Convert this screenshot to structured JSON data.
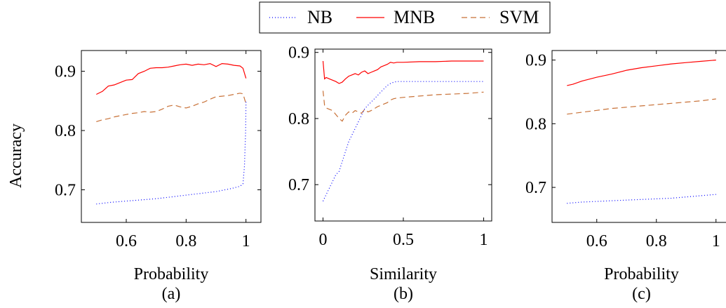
{
  "legend": {
    "entries": [
      {
        "label": "NB",
        "color": "#0000ff",
        "dash": "dotted"
      },
      {
        "label": "MNB",
        "color": "#ff0000",
        "dash": "solid"
      },
      {
        "label": "SVM",
        "color": "#c87137",
        "dash": "dashed"
      }
    ]
  },
  "ylabel": "Accuracy",
  "chart_data": [
    {
      "type": "line",
      "xlabel": "Probability",
      "caption": "(a)",
      "xlim": [
        0.45,
        1.05
      ],
      "ylim": [
        0.645,
        0.935
      ],
      "xticks": [
        0.6,
        0.8,
        1
      ],
      "xtick_labels": [
        "0.6",
        "0.8",
        "1"
      ],
      "yticks": [
        0.7,
        0.8,
        0.9
      ],
      "ytick_labels": [
        "0.7",
        "0.8",
        "0.9"
      ],
      "series": [
        {
          "name": "MNB",
          "x": [
            0.5,
            0.52,
            0.54,
            0.56,
            0.58,
            0.6,
            0.62,
            0.64,
            0.66,
            0.68,
            0.7,
            0.72,
            0.74,
            0.76,
            0.78,
            0.8,
            0.82,
            0.84,
            0.86,
            0.88,
            0.9,
            0.92,
            0.94,
            0.96,
            0.98,
            0.99,
            1.0
          ],
          "y": [
            0.861,
            0.866,
            0.875,
            0.877,
            0.881,
            0.885,
            0.886,
            0.896,
            0.9,
            0.905,
            0.906,
            0.906,
            0.907,
            0.909,
            0.911,
            0.912,
            0.91,
            0.912,
            0.911,
            0.913,
            0.908,
            0.913,
            0.912,
            0.91,
            0.909,
            0.905,
            0.888
          ]
        },
        {
          "name": "SVM",
          "x": [
            0.5,
            0.52,
            0.54,
            0.56,
            0.58,
            0.6,
            0.62,
            0.64,
            0.66,
            0.68,
            0.7,
            0.72,
            0.74,
            0.76,
            0.78,
            0.8,
            0.82,
            0.84,
            0.86,
            0.88,
            0.9,
            0.92,
            0.94,
            0.96,
            0.98,
            0.99,
            1.0
          ],
          "y": [
            0.815,
            0.818,
            0.82,
            0.823,
            0.825,
            0.827,
            0.829,
            0.83,
            0.832,
            0.831,
            0.832,
            0.836,
            0.841,
            0.843,
            0.84,
            0.838,
            0.841,
            0.845,
            0.848,
            0.853,
            0.857,
            0.858,
            0.859,
            0.861,
            0.863,
            0.862,
            0.845
          ]
        },
        {
          "name": "NB",
          "x": [
            0.5,
            0.55,
            0.6,
            0.65,
            0.7,
            0.75,
            0.8,
            0.85,
            0.9,
            0.95,
            0.98,
            0.99,
            0.995,
            0.999,
            1.0
          ],
          "y": [
            0.676,
            0.679,
            0.681,
            0.683,
            0.685,
            0.688,
            0.691,
            0.694,
            0.697,
            0.702,
            0.706,
            0.71,
            0.74,
            0.8,
            0.85
          ]
        }
      ]
    },
    {
      "type": "line",
      "xlabel": "Similarity",
      "caption": "(b)",
      "xlim": [
        -0.05,
        1.05
      ],
      "ylim": [
        0.645,
        0.905
      ],
      "xticks": [
        0,
        0.5,
        1
      ],
      "xtick_labels": [
        "0",
        "0.5",
        "1"
      ],
      "yticks": [
        0.7,
        0.8,
        0.9
      ],
      "ytick_labels": [
        "0.7",
        "0.8",
        "0.9"
      ],
      "series": [
        {
          "name": "MNB",
          "x": [
            0,
            0.01,
            0.02,
            0.04,
            0.06,
            0.08,
            0.1,
            0.12,
            0.14,
            0.16,
            0.18,
            0.2,
            0.22,
            0.24,
            0.26,
            0.28,
            0.3,
            0.32,
            0.34,
            0.36,
            0.38,
            0.4,
            0.42,
            0.44,
            0.46,
            0.5,
            0.6,
            0.7,
            0.8,
            0.9,
            1.0
          ],
          "y": [
            0.887,
            0.86,
            0.862,
            0.86,
            0.858,
            0.856,
            0.853,
            0.855,
            0.86,
            0.864,
            0.866,
            0.868,
            0.866,
            0.87,
            0.872,
            0.868,
            0.87,
            0.872,
            0.874,
            0.878,
            0.88,
            0.882,
            0.885,
            0.884,
            0.885,
            0.885,
            0.886,
            0.886,
            0.887,
            0.887,
            0.887
          ]
        },
        {
          "name": "SVM",
          "x": [
            0,
            0.01,
            0.02,
            0.04,
            0.06,
            0.08,
            0.1,
            0.12,
            0.14,
            0.16,
            0.18,
            0.2,
            0.22,
            0.24,
            0.26,
            0.28,
            0.3,
            0.32,
            0.34,
            0.36,
            0.38,
            0.4,
            0.42,
            0.44,
            0.46,
            0.5,
            0.6,
            0.7,
            0.8,
            0.9,
            1.0
          ],
          "y": [
            0.842,
            0.82,
            0.816,
            0.814,
            0.812,
            0.806,
            0.8,
            0.796,
            0.805,
            0.81,
            0.808,
            0.812,
            0.81,
            0.808,
            0.814,
            0.81,
            0.812,
            0.815,
            0.818,
            0.82,
            0.822,
            0.824,
            0.828,
            0.83,
            0.831,
            0.832,
            0.834,
            0.836,
            0.837,
            0.838,
            0.84
          ]
        },
        {
          "name": "NB",
          "x": [
            0,
            0.02,
            0.04,
            0.06,
            0.08,
            0.1,
            0.12,
            0.14,
            0.16,
            0.18,
            0.2,
            0.22,
            0.24,
            0.26,
            0.28,
            0.3,
            0.32,
            0.34,
            0.36,
            0.38,
            0.4,
            0.42,
            0.44,
            0.46,
            0.5,
            0.6,
            0.7,
            0.8,
            0.9,
            1.0
          ],
          "y": [
            0.675,
            0.685,
            0.695,
            0.705,
            0.715,
            0.72,
            0.735,
            0.75,
            0.765,
            0.775,
            0.785,
            0.795,
            0.805,
            0.815,
            0.82,
            0.825,
            0.83,
            0.835,
            0.84,
            0.845,
            0.85,
            0.853,
            0.855,
            0.856,
            0.856,
            0.856,
            0.856,
            0.856,
            0.856,
            0.856
          ]
        }
      ]
    },
    {
      "type": "line",
      "xlabel": "Probability",
      "caption": "(c)",
      "xlim": [
        0.45,
        1.05
      ],
      "ylim": [
        0.645,
        0.915
      ],
      "xticks": [
        0.6,
        0.8,
        1
      ],
      "xtick_labels": [
        "0.6",
        "0.8",
        "1"
      ],
      "yticks": [
        0.7,
        0.8,
        0.9
      ],
      "ytick_labels": [
        "0.7",
        "0.8",
        "0.9"
      ],
      "series": [
        {
          "name": "MNB",
          "x": [
            0.5,
            0.52,
            0.55,
            0.6,
            0.65,
            0.7,
            0.75,
            0.8,
            0.85,
            0.9,
            0.95,
            1.0
          ],
          "y": [
            0.86,
            0.862,
            0.867,
            0.873,
            0.878,
            0.884,
            0.888,
            0.891,
            0.894,
            0.896,
            0.898,
            0.9
          ]
        },
        {
          "name": "SVM",
          "x": [
            0.5,
            0.55,
            0.6,
            0.65,
            0.7,
            0.75,
            0.8,
            0.85,
            0.9,
            0.95,
            1.0
          ],
          "y": [
            0.815,
            0.818,
            0.821,
            0.824,
            0.826,
            0.828,
            0.83,
            0.832,
            0.834,
            0.836,
            0.839
          ]
        },
        {
          "name": "NB",
          "x": [
            0.5,
            0.55,
            0.6,
            0.65,
            0.7,
            0.75,
            0.8,
            0.85,
            0.9,
            0.95,
            1.0
          ],
          "y": [
            0.675,
            0.677,
            0.678,
            0.679,
            0.68,
            0.681,
            0.682,
            0.683,
            0.685,
            0.687,
            0.689
          ]
        }
      ]
    }
  ]
}
